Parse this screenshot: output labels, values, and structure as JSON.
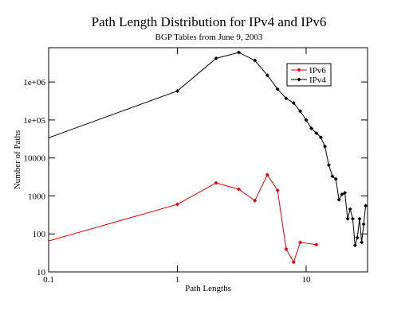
{
  "chart_data": {
    "type": "line",
    "title": "Path Length Distribution for IPv4 and IPv6",
    "subtitle": "BGP Tables from June 9, 2003",
    "xlabel": "Path Lengths",
    "ylabel": "Number of Paths",
    "xscale": "log",
    "yscale": "log",
    "xlim": [
      0.1,
      30
    ],
    "ylim": [
      10,
      8000000
    ],
    "xticks": [
      0.1,
      1,
      10
    ],
    "yticks": [
      10,
      100,
      1000,
      10000,
      {
        "value": 100000,
        "label": "1e+05"
      },
      {
        "value": 1000000,
        "label": "1e+06"
      }
    ],
    "legend": "upper right",
    "series": [
      {
        "name": "IPv6",
        "color": "#e00000",
        "x": [
          0.1,
          1,
          2,
          3,
          4,
          5,
          6,
          7,
          8,
          9,
          12
        ],
        "values": [
          65,
          600,
          2200,
          1500,
          750,
          3600,
          1400,
          40,
          18,
          60,
          52
        ]
      },
      {
        "name": "IPv4",
        "color": "#000000",
        "x": [
          0.1,
          1,
          2,
          3,
          4,
          5,
          6,
          7,
          8,
          9,
          10,
          11,
          12,
          13,
          14,
          15,
          16,
          17,
          18,
          19,
          20,
          21,
          22,
          23,
          24,
          25,
          26,
          27,
          28,
          29
        ],
        "values": [
          34000,
          580000,
          4200000,
          6000000,
          3700000,
          1500000,
          650000,
          370000,
          280000,
          170000,
          100000,
          60000,
          45000,
          35000,
          20000,
          6500,
          3300,
          2800,
          800,
          1100,
          1200,
          250,
          450,
          250,
          50,
          80,
          250,
          60,
          180,
          550
        ]
      }
    ]
  }
}
